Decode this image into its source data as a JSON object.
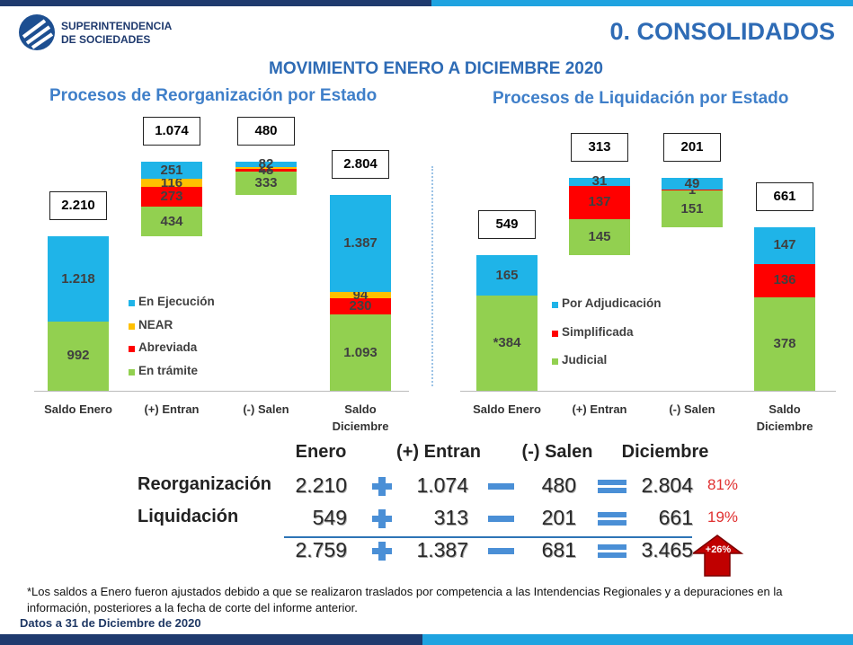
{
  "header": {
    "organization": [
      "SUPERINTENDENCIA",
      "DE SOCIEDADES"
    ],
    "title": "0. CONSOLIDADOS",
    "subtitle": "MOVIMIENTO ENERO A DICIEMBRE 2020"
  },
  "chart_data": [
    {
      "type": "waterfall",
      "title": "Procesos de Reorganización por Estado",
      "categories": [
        "Saldo Enero",
        "(+) Entran",
        "(-) Salen",
        "Saldo Diciembre"
      ],
      "totals": [
        2210,
        1074,
        480,
        2804
      ],
      "total_labels": [
        "2.210",
        "1.074",
        "480",
        "2.804"
      ],
      "series": [
        {
          "name": "En trámite",
          "color": "#92d050",
          "values": [
            992,
            434,
            333,
            1093
          ],
          "value_labels": [
            "992",
            "434",
            "333",
            "1.093"
          ]
        },
        {
          "name": "Abreviada",
          "color": "#ff0000",
          "values": [
            null,
            273,
            43,
            230
          ],
          "value_labels": [
            null,
            "273",
            "43",
            "230"
          ]
        },
        {
          "name": "NEAR",
          "color": "#ffc000",
          "values": [
            null,
            116,
            22,
            94
          ],
          "value_labels": [
            null,
            "116",
            "22",
            "94"
          ]
        },
        {
          "name": "En Ejecución",
          "color": "#1fb4e8",
          "values": [
            1218,
            251,
            82,
            1387
          ],
          "value_labels": [
            "1.218",
            "251",
            "82",
            "1.387"
          ]
        }
      ]
    },
    {
      "type": "waterfall",
      "title": "Procesos de Liquidación por Estado",
      "categories": [
        "Saldo Enero",
        "(+) Entran",
        "(-) Salen",
        "Saldo Diciembre"
      ],
      "totals": [
        549,
        313,
        201,
        661
      ],
      "total_labels": [
        "549",
        "313",
        "201",
        "661"
      ],
      "series": [
        {
          "name": "Judicial",
          "color": "#92d050",
          "values": [
            384,
            145,
            151,
            378
          ],
          "value_labels": [
            "*384",
            "145",
            "151",
            "378"
          ]
        },
        {
          "name": "Simplificada",
          "color": "#ff0000",
          "values": [
            null,
            137,
            1,
            136
          ],
          "value_labels": [
            null,
            "137",
            "1",
            "136"
          ]
        },
        {
          "name": "Por Adjudicación",
          "color": "#1fb4e8",
          "values": [
            165,
            31,
            49,
            147
          ],
          "value_labels": [
            "165",
            "31",
            "49",
            "147"
          ]
        }
      ]
    }
  ],
  "summary": {
    "columns": [
      "Enero",
      "(+) Entran",
      "(-) Salen",
      "Diciembre"
    ],
    "rows": [
      {
        "label": "Reorganización",
        "values": [
          "2.210",
          "1.074",
          "480",
          "2.804"
        ],
        "share": "81%"
      },
      {
        "label": "Liquidación",
        "values": [
          "549",
          "313",
          "201",
          "661"
        ],
        "share": "19%"
      }
    ],
    "total": {
      "values": [
        "2.759",
        "1.387",
        "681",
        "3.465"
      ],
      "change": "+26%"
    }
  },
  "footnote": "*Los saldos a Enero fueron ajustados debido a que se realizaron traslados por competencia a las Intendencias Regionales y a depuraciones en la información, posteriores a la fecha de corte del informe anterior.",
  "data_date": "Datos a 31 de Diciembre de 2020"
}
